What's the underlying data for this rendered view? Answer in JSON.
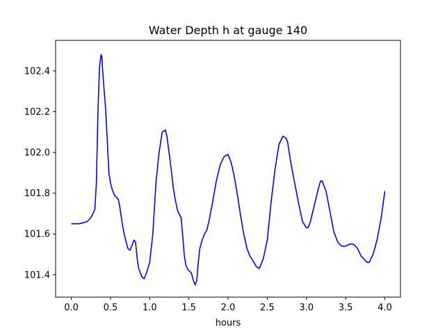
{
  "chart_data": {
    "type": "line",
    "title": "Water Depth h at gauge 140",
    "xlabel": "hours",
    "ylabel": "",
    "xlim": [
      -0.2,
      4.2
    ],
    "ylim": [
      101.29,
      102.55
    ],
    "xticks": [
      0.0,
      0.5,
      1.0,
      1.5,
      2.0,
      2.5,
      3.0,
      3.5,
      4.0
    ],
    "xtick_labels": [
      "0.0",
      "0.5",
      "1.0",
      "1.5",
      "2.0",
      "2.5",
      "3.0",
      "3.5",
      "4.0"
    ],
    "yticks": [
      101.4,
      101.6,
      101.8,
      102.0,
      102.2,
      102.4
    ],
    "ytick_labels": [
      "101.4",
      "101.6",
      "101.8",
      "102.0",
      "102.2",
      "102.4"
    ],
    "grid": false,
    "series": [
      {
        "color": "#0000ff",
        "x": [
          0.0,
          0.1,
          0.2,
          0.25,
          0.3,
          0.32,
          0.34,
          0.36,
          0.38,
          0.39,
          0.4,
          0.42,
          0.44,
          0.46,
          0.48,
          0.5,
          0.52,
          0.55,
          0.6,
          0.62,
          0.65,
          0.68,
          0.72,
          0.75,
          0.78,
          0.8,
          0.82,
          0.84,
          0.86,
          0.88,
          0.9,
          0.93,
          0.96,
          1.0,
          1.04,
          1.08,
          1.12,
          1.16,
          1.2,
          1.22,
          1.24,
          1.27,
          1.3,
          1.33,
          1.36,
          1.4,
          1.42,
          1.44,
          1.46,
          1.48,
          1.5,
          1.53,
          1.56,
          1.58,
          1.6,
          1.62,
          1.64,
          1.67,
          1.7,
          1.73,
          1.76,
          1.8,
          1.85,
          1.9,
          1.95,
          2.0,
          2.04,
          2.08,
          2.12,
          2.16,
          2.2,
          2.24,
          2.28,
          2.3,
          2.33,
          2.36,
          2.4,
          2.45,
          2.5,
          2.55,
          2.6,
          2.65,
          2.7,
          2.74,
          2.76,
          2.8,
          2.85,
          2.9,
          2.95,
          3.0,
          3.02,
          3.05,
          3.1,
          3.15,
          3.18,
          3.2,
          3.25,
          3.3,
          3.35,
          3.4,
          3.45,
          3.5,
          3.55,
          3.6,
          3.65,
          3.7,
          3.75,
          3.78,
          3.8,
          3.85,
          3.9,
          3.95,
          4.0
        ],
        "values": [
          101.65,
          101.65,
          101.66,
          101.68,
          101.72,
          101.85,
          102.2,
          102.42,
          102.48,
          102.47,
          102.4,
          102.3,
          102.2,
          102.05,
          101.9,
          101.85,
          101.82,
          101.79,
          101.77,
          101.73,
          101.65,
          101.59,
          101.53,
          101.52,
          101.55,
          101.57,
          101.56,
          101.48,
          101.43,
          101.41,
          101.39,
          101.38,
          101.41,
          101.46,
          101.6,
          101.85,
          102.0,
          102.1,
          102.11,
          102.08,
          102.02,
          101.93,
          101.83,
          101.76,
          101.71,
          101.68,
          101.6,
          101.5,
          101.45,
          101.43,
          101.42,
          101.41,
          101.37,
          101.35,
          101.37,
          101.46,
          101.53,
          101.57,
          101.6,
          101.62,
          101.67,
          101.75,
          101.86,
          101.94,
          101.98,
          101.99,
          101.95,
          101.88,
          101.79,
          101.69,
          101.6,
          101.53,
          101.49,
          101.48,
          101.46,
          101.44,
          101.43,
          101.48,
          101.57,
          101.76,
          101.92,
          102.04,
          102.08,
          102.07,
          102.05,
          101.95,
          101.85,
          101.75,
          101.66,
          101.63,
          101.63,
          101.66,
          101.74,
          101.82,
          101.86,
          101.86,
          101.81,
          101.71,
          101.61,
          101.56,
          101.54,
          101.54,
          101.55,
          101.55,
          101.53,
          101.49,
          101.47,
          101.46,
          101.46,
          101.5,
          101.57,
          101.67,
          101.81
        ]
      }
    ]
  }
}
